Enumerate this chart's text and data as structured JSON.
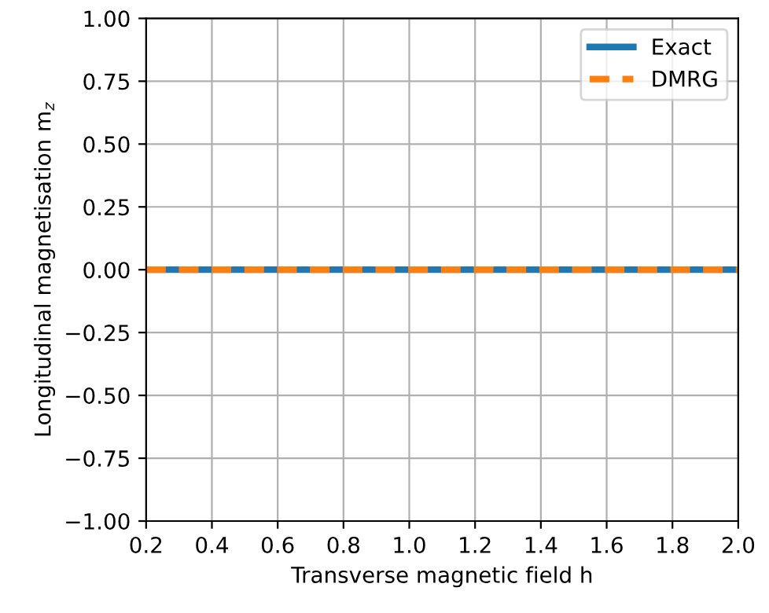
{
  "chart_data": {
    "type": "line",
    "xlabel": "Transverse magnetic field h",
    "ylabel": "Longitudinal magnetisation m$_{z}$",
    "x": [
      0.2,
      2.0
    ],
    "series": [
      {
        "name": "Exact",
        "color": "#1f77b4",
        "line_style": "solid",
        "values": [
          0,
          0
        ]
      },
      {
        "name": "DMRG",
        "color": "#ff7f0e",
        "line_style": "dashed",
        "values": [
          0,
          0
        ]
      }
    ],
    "xlim": [
      0.2,
      2.0
    ],
    "ylim": [
      -1.0,
      1.0
    ],
    "xticks": [
      0.2,
      0.4,
      0.6,
      0.8,
      {
        "value": 1,
        "label": "1.0"
      },
      1.2,
      1.4,
      1.6,
      1.8,
      {
        "value": 2,
        "label": "2.0"
      }
    ],
    "yticks": [
      {
        "value": -1.0,
        "label": "−1.00"
      },
      {
        "value": -0.75,
        "label": "−0.75"
      },
      {
        "value": -0.5,
        "label": "−0.50"
      },
      {
        "value": -0.25,
        "label": "−0.25"
      },
      {
        "value": 0,
        "label": "0.00"
      },
      {
        "value": 0.25,
        "label": "0.25"
      },
      {
        "value": 0.5,
        "label": "0.50"
      },
      {
        "value": 0.75,
        "label": "0.75"
      },
      {
        "value": 1.0,
        "label": "1.00"
      }
    ],
    "grid": true,
    "legend": "top right",
    "marker": "none"
  }
}
